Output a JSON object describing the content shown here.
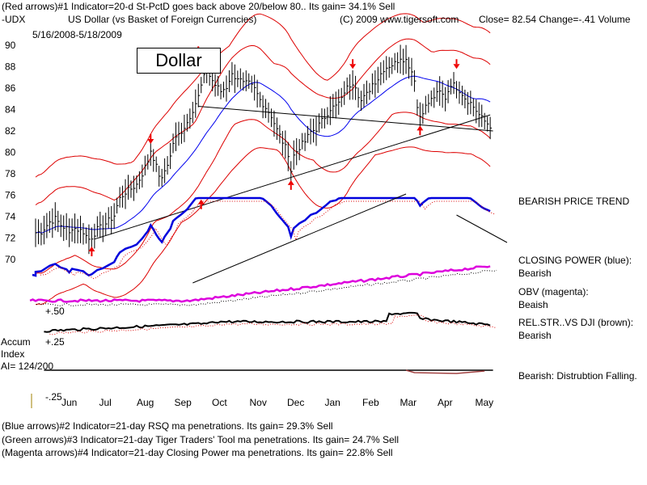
{
  "header": {
    "line1": "(Red arrows)#1 Indicator=20-d St-PctD goes back above 20/below 80.. Its gain= 34.1% Sell",
    "symbol": "-UDX",
    "title": "US Dollar (vs Basket of Foreign Currencies)",
    "copyright": "(C) 2009 www.tigersoft.com",
    "close": "Close=  82.54  Change=-.41 Volume",
    "date_range": "5/16/2008-5/18/2009"
  },
  "chart_label": "Dollar",
  "accum": {
    "label1": "Accum",
    "label2": "Index",
    "ai": "AI= 124/200"
  },
  "side_notes": {
    "trend": "BEARISH PRICE TREND",
    "cp_title": "CLOSING POWER (blue):",
    "cp_val": "Bearish",
    "obv_title": "OBV (magenta):",
    "obv_val": "Beaish",
    "rel_title": "REL.STR..VS DJI (brown):",
    "rel_val": "Bearish",
    "distribution": "Bearish: Distrubtion Falling."
  },
  "footer": {
    "line1": "(Blue arrows)#2 Indicator=21-day RSQ ma penetrations. Its gain= 29.3% Sell",
    "line2": "(Green arrows)#3 Indicator=21-day Tiger Traders' Tool ma penetrations. Its gain= 24.7% Sell",
    "line3": "(Magenta arrows)#4 Indicator=21-day Closing Power ma penetrations. Its gain= 22.8% Sell"
  },
  "chart_data": {
    "type": "line",
    "title": "US Dollar (vs Basket of Foreign Currencies)",
    "months": [
      "Jun",
      "Jul",
      "Aug",
      "Sep",
      "Oct",
      "Nov",
      "Dec",
      "Jan",
      "Feb",
      "Mar",
      "Apr",
      "May"
    ],
    "y_ticks": [
      "90",
      "88",
      "86",
      "84",
      "82",
      "80",
      "78",
      "76",
      "74",
      "72",
      "70"
    ],
    "y_range": [
      69,
      91
    ],
    "acc_ticks": [
      "+.50",
      "+.25",
      "-.25"
    ],
    "price": [
      [
        0,
        72.5
      ],
      [
        0.2,
        72.6
      ],
      [
        0.5,
        73.5
      ],
      [
        0.7,
        73.8
      ],
      [
        0.9,
        73.2
      ],
      [
        1.1,
        72.9
      ],
      [
        1.2,
        72.4
      ],
      [
        1.3,
        73.0
      ],
      [
        1.5,
        72.8
      ],
      [
        1.7,
        72.6
      ],
      [
        1.8,
        72.2
      ],
      [
        1.9,
        71.9
      ],
      [
        2.0,
        72.1
      ],
      [
        2.2,
        72.8
      ],
      [
        2.4,
        73.1
      ],
      [
        2.6,
        73.6
      ],
      [
        2.8,
        74.1
      ],
      [
        2.9,
        75.0
      ],
      [
        3.0,
        75.7
      ],
      [
        3.2,
        76.3
      ],
      [
        3.4,
        76.6
      ],
      [
        3.6,
        77.0
      ],
      [
        3.8,
        78.0
      ],
      [
        4.0,
        79.2
      ],
      [
        4.1,
        80.2
      ],
      [
        4.2,
        79.5
      ],
      [
        4.35,
        78.2
      ],
      [
        4.5,
        77.4
      ],
      [
        4.6,
        78.3
      ],
      [
        4.8,
        79.6
      ],
      [
        4.9,
        80.9
      ],
      [
        5.0,
        81.3
      ],
      [
        5.2,
        82.0
      ],
      [
        5.4,
        82.8
      ],
      [
        5.6,
        84.0
      ],
      [
        5.8,
        85.2
      ],
      [
        5.9,
        86.2
      ],
      [
        6.0,
        87.0
      ],
      [
        6.1,
        87.6
      ],
      [
        6.25,
        86.9
      ],
      [
        6.4,
        86.3
      ],
      [
        6.6,
        85.7
      ],
      [
        6.8,
        86.1
      ],
      [
        6.9,
        86.8
      ],
      [
        7.0,
        87.2
      ],
      [
        7.2,
        87.0
      ],
      [
        7.4,
        86.4
      ],
      [
        7.6,
        86.4
      ],
      [
        7.8,
        85.9
      ],
      [
        8.0,
        84.9
      ],
      [
        8.2,
        84.2
      ],
      [
        8.4,
        83.4
      ],
      [
        8.6,
        82.1
      ],
      [
        8.8,
        81.0
      ],
      [
        9.0,
        79.9
      ],
      [
        9.1,
        78.3
      ],
      [
        9.2,
        79.7
      ],
      [
        9.4,
        80.5
      ],
      [
        9.6,
        81.0
      ],
      [
        9.8,
        81.9
      ],
      [
        10.0,
        82.2
      ],
      [
        10.3,
        83.3
      ],
      [
        10.5,
        84.1
      ],
      [
        10.7,
        84.3
      ],
      [
        10.9,
        84.9
      ],
      [
        11.0,
        85.7
      ],
      [
        11.2,
        86.3
      ],
      [
        11.35,
        86.7
      ],
      [
        11.5,
        85.4
      ],
      [
        11.6,
        84.8
      ],
      [
        11.8,
        85.4
      ],
      [
        12.0,
        86.4
      ],
      [
        12.2,
        86.9
      ],
      [
        12.4,
        87.8
      ],
      [
        12.6,
        88.1
      ],
      [
        12.8,
        88.3
      ],
      [
        13.0,
        88.9
      ],
      [
        13.2,
        88.6
      ],
      [
        13.35,
        87.9
      ],
      [
        13.5,
        86.9
      ],
      [
        13.6,
        84.2
      ],
      [
        13.7,
        83.4
      ],
      [
        13.8,
        83.9
      ],
      [
        14.0,
        84.6
      ],
      [
        14.2,
        85.2
      ],
      [
        14.4,
        85.6
      ],
      [
        14.6,
        85.1
      ],
      [
        14.8,
        86.4
      ],
      [
        15.0,
        86.1
      ],
      [
        15.15,
        85.7
      ],
      [
        15.3,
        85.1
      ],
      [
        15.5,
        84.6
      ],
      [
        15.7,
        83.9
      ],
      [
        15.85,
        83.3
      ],
      [
        16.0,
        82.9
      ],
      [
        16.2,
        82.5
      ]
    ],
    "notes": "Daily price bars with 21-day moving average (blue) and trading bands (red); subplots for Closing Power (blue), OBV (magenta), Rel.Str. vs DJI (black) and Accumulation Index."
  }
}
